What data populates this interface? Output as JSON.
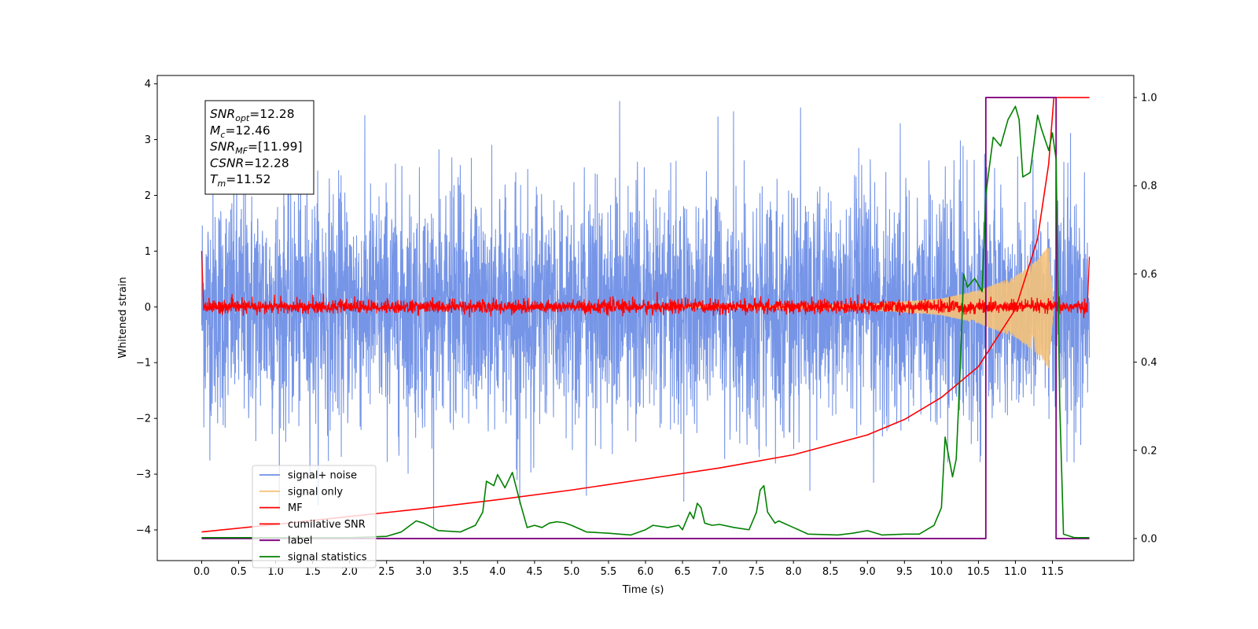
{
  "chart_data": {
    "type": "line",
    "xlabel": "Time (s)",
    "ylabel": "Whitened strain",
    "xlim": [
      -0.6,
      12.6
    ],
    "ylim": [
      -4.55,
      4.15
    ],
    "y2lim": [
      -0.05,
      1.05
    ],
    "x_ticks": [
      "0.0",
      "0.5",
      "1.0",
      "1.5",
      "2.0",
      "2.5",
      "3.0",
      "3.5",
      "4.0",
      "4.5",
      "5.0",
      "5.5",
      "6.0",
      "6.5",
      "7.0",
      "7.5",
      "8.0",
      "8.5",
      "9.0",
      "9.5",
      "10.0",
      "10.5",
      "11.0",
      "11.5"
    ],
    "y_ticks": [
      "4",
      "3",
      "2",
      "1",
      "0",
      "−1",
      "−2",
      "−3",
      "−4"
    ],
    "y2_ticks": [
      "1.0",
      "0.8",
      "0.6",
      "0.4",
      "0.2",
      "0.0"
    ],
    "grid": false,
    "legend_placement": "lower-left",
    "annotation": [
      {
        "main": "SNR",
        "sub": "opt",
        "rest": "=12.28"
      },
      {
        "main": "M",
        "sub": "c",
        "rest": "=12.46"
      },
      {
        "main": "SNR",
        "sub": "MF",
        "rest": "=[11.99]"
      },
      {
        "main": "CSNR",
        "sub": "",
        "rest": "=12.28"
      },
      {
        "main": "T",
        "sub": "m",
        "rest": "=11.52"
      }
    ],
    "series": [
      {
        "name": "signal+ noise",
        "color": "#6f8fe6",
        "axis": "left",
        "kind": "noise",
        "time_range": [
          0.0,
          12.0
        ],
        "noise_mean": 0.0,
        "noise_std": 1.05,
        "approx_range": [
          -4.1,
          3.8
        ]
      },
      {
        "name": "signal only",
        "color": "#f5c27a",
        "axis": "left",
        "kind": "chirp",
        "time_range": [
          0.0,
          11.52
        ],
        "envelope": [
          {
            "t": 9.0,
            "amp": 0.05
          },
          {
            "t": 10.0,
            "amp": 0.15
          },
          {
            "t": 10.5,
            "amp": 0.3
          },
          {
            "t": 11.0,
            "amp": 0.55
          },
          {
            "t": 11.3,
            "amp": 0.85
          },
          {
            "t": 11.45,
            "amp": 1.1
          },
          {
            "t": 11.52,
            "amp": 0.0
          }
        ]
      },
      {
        "name": "MF",
        "color": "#ff0000",
        "axis": "left",
        "kind": "noise",
        "time_range": [
          0.0,
          12.0
        ],
        "noise_mean": 0.0,
        "noise_std": 0.06,
        "points": [
          [
            0.0,
            1.0
          ],
          [
            0.02,
            0.2
          ],
          [
            11.98,
            0.2
          ],
          [
            12.0,
            0.9
          ]
        ]
      },
      {
        "name": "cumilative SNR",
        "color": "#ff0000",
        "axis": "right",
        "points": [
          [
            0.0,
            0.015
          ],
          [
            1.0,
            0.032
          ],
          [
            2.0,
            0.05
          ],
          [
            3.0,
            0.068
          ],
          [
            4.0,
            0.088
          ],
          [
            5.0,
            0.11
          ],
          [
            6.0,
            0.135
          ],
          [
            7.0,
            0.16
          ],
          [
            8.0,
            0.19
          ],
          [
            9.0,
            0.235
          ],
          [
            9.5,
            0.27
          ],
          [
            10.0,
            0.32
          ],
          [
            10.5,
            0.39
          ],
          [
            11.0,
            0.52
          ],
          [
            11.3,
            0.68
          ],
          [
            11.45,
            0.85
          ],
          [
            11.52,
            1.0
          ],
          [
            12.0,
            1.0
          ]
        ]
      },
      {
        "name": "label",
        "color": "#800080",
        "axis": "right",
        "points": [
          [
            0.0,
            0.0
          ],
          [
            10.6,
            0.0
          ],
          [
            10.6,
            1.0
          ],
          [
            11.55,
            1.0
          ],
          [
            11.55,
            0.0
          ],
          [
            12.0,
            0.0
          ]
        ]
      },
      {
        "name": "signal statistics",
        "color": "#008000",
        "axis": "right",
        "points": [
          [
            0.0,
            0.002
          ],
          [
            2.0,
            0.002
          ],
          [
            2.5,
            0.005
          ],
          [
            2.7,
            0.015
          ],
          [
            2.9,
            0.04
          ],
          [
            3.0,
            0.035
          ],
          [
            3.2,
            0.018
          ],
          [
            3.5,
            0.015
          ],
          [
            3.7,
            0.03
          ],
          [
            3.8,
            0.06
          ],
          [
            3.85,
            0.13
          ],
          [
            3.95,
            0.12
          ],
          [
            4.0,
            0.145
          ],
          [
            4.1,
            0.115
          ],
          [
            4.2,
            0.15
          ],
          [
            4.3,
            0.085
          ],
          [
            4.4,
            0.025
          ],
          [
            4.5,
            0.03
          ],
          [
            4.6,
            0.025
          ],
          [
            4.7,
            0.035
          ],
          [
            4.8,
            0.038
          ],
          [
            4.9,
            0.036
          ],
          [
            5.0,
            0.03
          ],
          [
            5.2,
            0.015
          ],
          [
            5.5,
            0.012
          ],
          [
            5.8,
            0.008
          ],
          [
            6.0,
            0.02
          ],
          [
            6.1,
            0.03
          ],
          [
            6.3,
            0.025
          ],
          [
            6.45,
            0.03
          ],
          [
            6.5,
            0.02
          ],
          [
            6.6,
            0.06
          ],
          [
            6.65,
            0.045
          ],
          [
            6.7,
            0.08
          ],
          [
            6.75,
            0.07
          ],
          [
            6.8,
            0.035
          ],
          [
            6.9,
            0.03
          ],
          [
            7.0,
            0.032
          ],
          [
            7.2,
            0.025
          ],
          [
            7.4,
            0.02
          ],
          [
            7.5,
            0.06
          ],
          [
            7.55,
            0.11
          ],
          [
            7.6,
            0.12
          ],
          [
            7.65,
            0.06
          ],
          [
            7.75,
            0.035
          ],
          [
            7.8,
            0.04
          ],
          [
            8.0,
            0.025
          ],
          [
            8.2,
            0.01
          ],
          [
            8.6,
            0.008
          ],
          [
            8.8,
            0.012
          ],
          [
            9.0,
            0.018
          ],
          [
            9.2,
            0.008
          ],
          [
            9.5,
            0.01
          ],
          [
            9.7,
            0.01
          ],
          [
            9.9,
            0.03
          ],
          [
            10.0,
            0.07
          ],
          [
            10.05,
            0.23
          ],
          [
            10.15,
            0.14
          ],
          [
            10.2,
            0.18
          ],
          [
            10.25,
            0.37
          ],
          [
            10.3,
            0.6
          ],
          [
            10.35,
            0.57
          ],
          [
            10.45,
            0.59
          ],
          [
            10.55,
            0.56
          ],
          [
            10.6,
            0.78
          ],
          [
            10.7,
            0.91
          ],
          [
            10.8,
            0.89
          ],
          [
            10.9,
            0.95
          ],
          [
            11.0,
            0.98
          ],
          [
            11.05,
            0.95
          ],
          [
            11.1,
            0.82
          ],
          [
            11.2,
            0.83
          ],
          [
            11.3,
            0.96
          ],
          [
            11.35,
            0.93
          ],
          [
            11.45,
            0.88
          ],
          [
            11.5,
            0.92
          ],
          [
            11.55,
            0.86
          ],
          [
            11.6,
            0.3
          ],
          [
            11.65,
            0.01
          ],
          [
            11.8,
            0.002
          ],
          [
            12.0,
            0.002
          ]
        ]
      }
    ]
  }
}
